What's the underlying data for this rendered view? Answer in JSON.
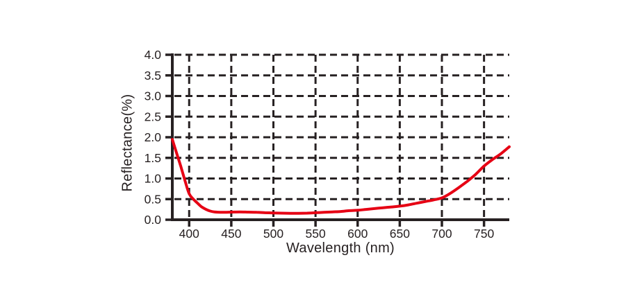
{
  "chart_data": {
    "type": "line",
    "title": "",
    "xlabel": "Wavelength (nm)",
    "ylabel": "Reflectance(%)",
    "xlim": [
      380,
      780
    ],
    "ylim": [
      0.0,
      4.0
    ],
    "x_ticks": [
      "400",
      "450",
      "500",
      "550",
      "600",
      "650",
      "700",
      "750"
    ],
    "y_ticks": [
      "0.0",
      "0.5",
      "1.0",
      "1.5",
      "2.0",
      "2.5",
      "3.0",
      "3.5",
      "4.0"
    ],
    "grid": "dashed-both-axes",
    "legend": "none",
    "series": [
      {
        "name": "reflectance-curve",
        "color": "#e60014",
        "x": [
          380,
          385,
          390,
          395,
          400,
          405,
          410,
          415,
          420,
          425,
          430,
          440,
          450,
          460,
          470,
          480,
          490,
          500,
          510,
          520,
          530,
          540,
          550,
          560,
          570,
          580,
          590,
          600,
          610,
          620,
          630,
          640,
          650,
          660,
          670,
          680,
          690,
          700,
          710,
          720,
          730,
          740,
          750,
          760,
          770,
          780
        ],
        "y": [
          1.95,
          1.62,
          1.3,
          0.95,
          0.63,
          0.5,
          0.4,
          0.31,
          0.25,
          0.21,
          0.19,
          0.18,
          0.185,
          0.19,
          0.185,
          0.18,
          0.17,
          0.165,
          0.16,
          0.155,
          0.155,
          0.16,
          0.17,
          0.18,
          0.19,
          0.2,
          0.22,
          0.23,
          0.25,
          0.27,
          0.29,
          0.31,
          0.33,
          0.36,
          0.4,
          0.44,
          0.48,
          0.53,
          0.64,
          0.78,
          0.93,
          1.1,
          1.3,
          1.46,
          1.6,
          1.77
        ]
      }
    ],
    "colors": {
      "axis": "#272122",
      "grid": "#272122",
      "text": "#272122",
      "background": "#ffffff"
    }
  }
}
